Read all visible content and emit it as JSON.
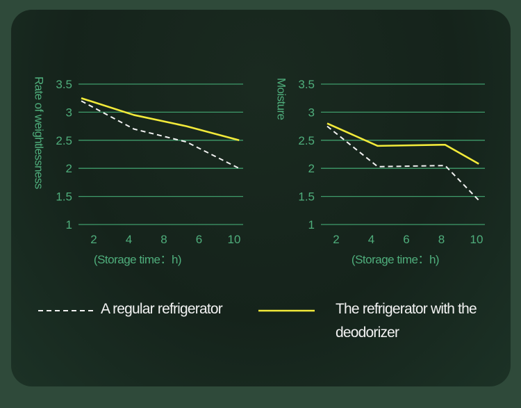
{
  "chart_data": [
    {
      "type": "line",
      "ylabel": "Rate of weightlessness",
      "xlabel": "(Storage time：h)",
      "x_ticks": [
        "2",
        "4",
        "8",
        "6",
        "10"
      ],
      "y_ticks": [
        "3.5",
        "3",
        "2.5",
        "2",
        "1.5",
        "1"
      ],
      "ylim": [
        1,
        3.5
      ],
      "series": [
        {
          "name": "A regular refrigerator",
          "style": "dashed",
          "color": "#f2f2f2",
          "x": [
            0,
            1.5,
            3,
            4.5
          ],
          "y": [
            3.2,
            2.7,
            2.47,
            2.0
          ]
        },
        {
          "name": "The refrigerator with the deodorizer",
          "style": "solid",
          "color": "#f2ea3a",
          "x": [
            0,
            1.5,
            3,
            4.5
          ],
          "y": [
            3.25,
            2.95,
            2.75,
            2.5
          ]
        }
      ]
    },
    {
      "type": "line",
      "ylabel": "Moisture",
      "xlabel": "(Storage time：h)",
      "x_ticks": [
        "2",
        "4",
        "6",
        "8",
        "10"
      ],
      "y_ticks": [
        "3.5",
        "3",
        "2.5",
        "2",
        "1.5",
        "1"
      ],
      "ylim": [
        1,
        3.5
      ],
      "series": [
        {
          "name": "A regular refrigerator",
          "style": "dashed",
          "color": "#f2f2f2",
          "x": [
            0,
            1.5,
            3.5,
            4.5
          ],
          "y": [
            2.75,
            2.03,
            2.05,
            1.43
          ]
        },
        {
          "name": "The refrigerator with the deodorizer",
          "style": "solid",
          "color": "#f2ea3a",
          "x": [
            0,
            1.5,
            3.5,
            4.5
          ],
          "y": [
            2.8,
            2.4,
            2.42,
            2.08
          ]
        }
      ]
    }
  ],
  "legend": {
    "regular_label": "A regular refrigerator",
    "deodorizer_label": "The refrigerator with the deodorizer"
  },
  "colors": {
    "grid": "#3f9c6b",
    "axis_text": "#4fae7c",
    "regular": "#f2f2f2",
    "deodorizer": "#f2ea3a"
  }
}
